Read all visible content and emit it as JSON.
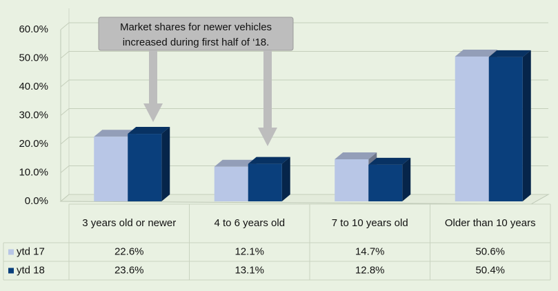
{
  "chart_data": {
    "type": "bar3d",
    "categories": [
      "3 years old or newer",
      "4 to 6 years old",
      "7 to 10 years old",
      "Older than 10 years"
    ],
    "series": [
      {
        "name": "ytd 17",
        "color": "#b8c6e6",
        "values": [
          22.6,
          12.1,
          14.7,
          50.6
        ],
        "value_labels": [
          "22.6%",
          "12.1%",
          "14.7%",
          "50.6%"
        ]
      },
      {
        "name": "ytd 18",
        "color": "#0a3f7c",
        "values": [
          23.6,
          13.1,
          12.8,
          50.4
        ],
        "value_labels": [
          "23.6%",
          "13.1%",
          "12.8%",
          "50.4%"
        ]
      }
    ],
    "ylim": [
      0,
      60
    ],
    "yticks": [
      {
        "value": 0,
        "label": "0.0%"
      },
      {
        "value": 10,
        "label": "10.0%"
      },
      {
        "value": 20,
        "label": "20.0%"
      },
      {
        "value": 30,
        "label": "30.0%"
      },
      {
        "value": 40,
        "label": "40.0%"
      },
      {
        "value": 50,
        "label": "50.0%"
      },
      {
        "value": 60,
        "label": "60.0%"
      }
    ],
    "grid": true,
    "annotation": [
      "Market shares for newer vehicles",
      "increased during first half of ‘18."
    ]
  }
}
